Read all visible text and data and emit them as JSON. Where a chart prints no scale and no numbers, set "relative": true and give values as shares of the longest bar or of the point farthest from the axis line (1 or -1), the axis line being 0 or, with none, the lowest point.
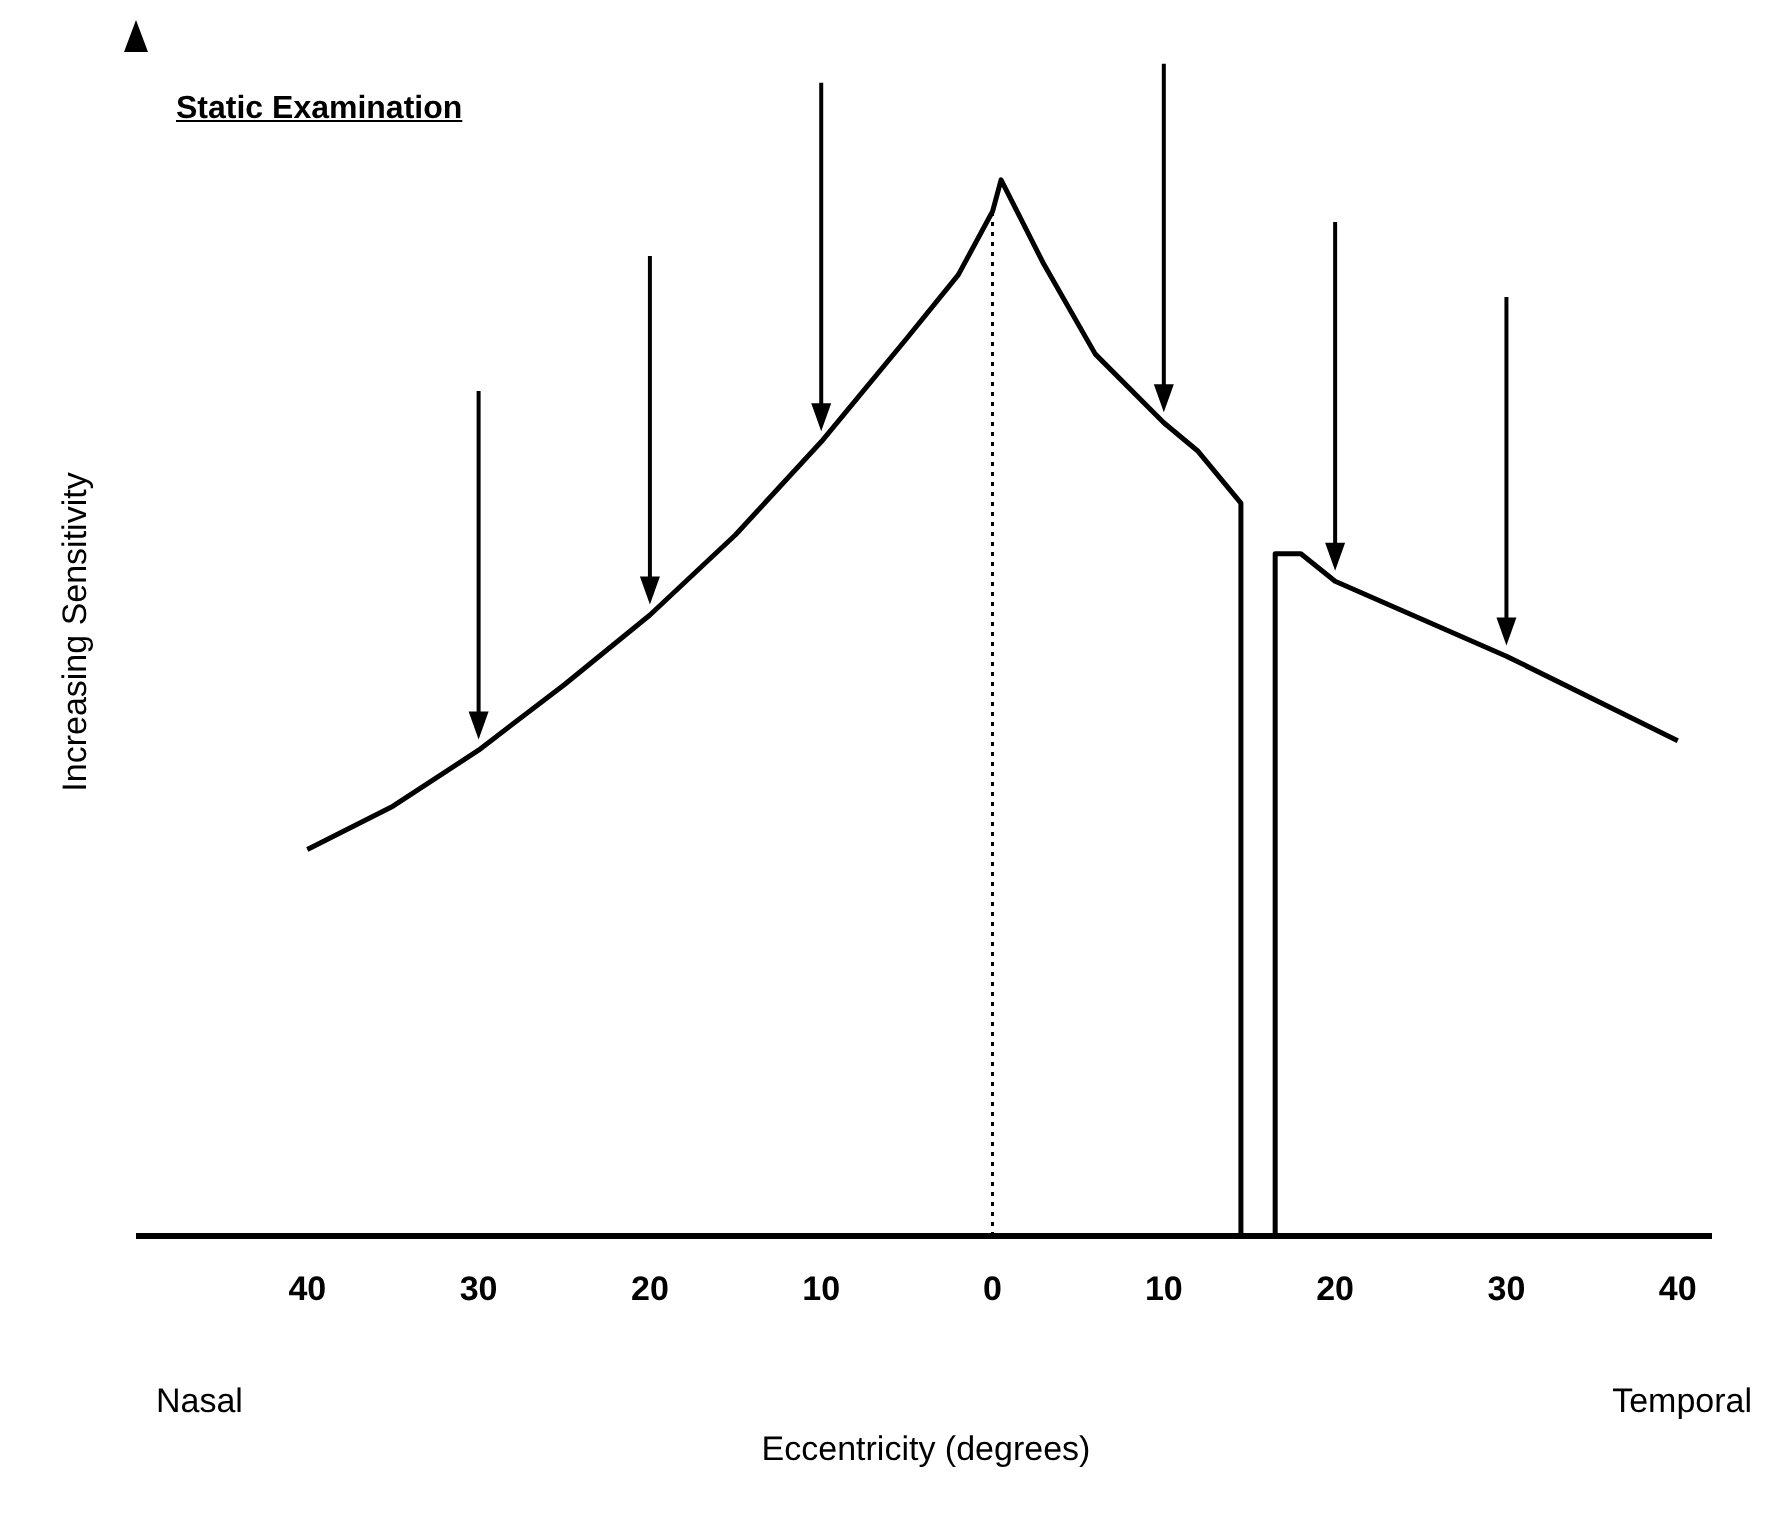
{
  "chart_data": {
    "type": "line",
    "title": "Static Examination",
    "xlabel": "Eccentricity (degrees)",
    "ylabel": "Increasing Sensitivity",
    "relative": true,
    "xlim": [
      -50,
      42
    ],
    "xticks": [
      {
        "value": -40,
        "label": "40"
      },
      {
        "value": -30,
        "label": "30"
      },
      {
        "value": -20,
        "label": "20"
      },
      {
        "value": -10,
        "label": "10"
      },
      0,
      10,
      20,
      30,
      40
    ],
    "x": [
      -40,
      -35,
      -30,
      -25,
      -20,
      -15,
      -10,
      -5,
      -2,
      0,
      0.5,
      3,
      6,
      10,
      12,
      14.5,
      14.5,
      15.5,
      16.5,
      16.5,
      18,
      20,
      30,
      40
    ],
    "series": [
      {
        "color": "#000000",
        "values": [
          0.366,
          0.407,
          0.46,
          0.522,
          0.588,
          0.664,
          0.752,
          0.85,
          0.91,
          0.97,
          1,
          0.92,
          0.835,
          0.77,
          0.743,
          0.694,
          0,
          null,
          0,
          0.646,
          0.646,
          0.62,
          0.549,
          0.469
        ]
      }
    ],
    "ref_lines": [
      {
        "axis": "x",
        "value": 0,
        "line_style": "dotted",
        "color": "#000000"
      },
      {
        "axis": "x",
        "value": -30,
        "line_style": "solid",
        "color": "#000000"
      },
      {
        "axis": "x",
        "value": -20,
        "line_style": "solid",
        "color": "#000000"
      },
      {
        "axis": "x",
        "value": -10,
        "line_style": "solid",
        "color": "#000000"
      },
      {
        "axis": "x",
        "value": 10,
        "line_style": "solid",
        "color": "#000000"
      },
      {
        "axis": "x",
        "value": 20,
        "line_style": "solid",
        "color": "#000000"
      },
      {
        "axis": "x",
        "value": 30,
        "line_style": "solid",
        "color": "#000000"
      }
    ],
    "annotations": [
      "Nasal",
      "Temporal"
    ],
    "marker": "none",
    "line_style": "solid"
  }
}
